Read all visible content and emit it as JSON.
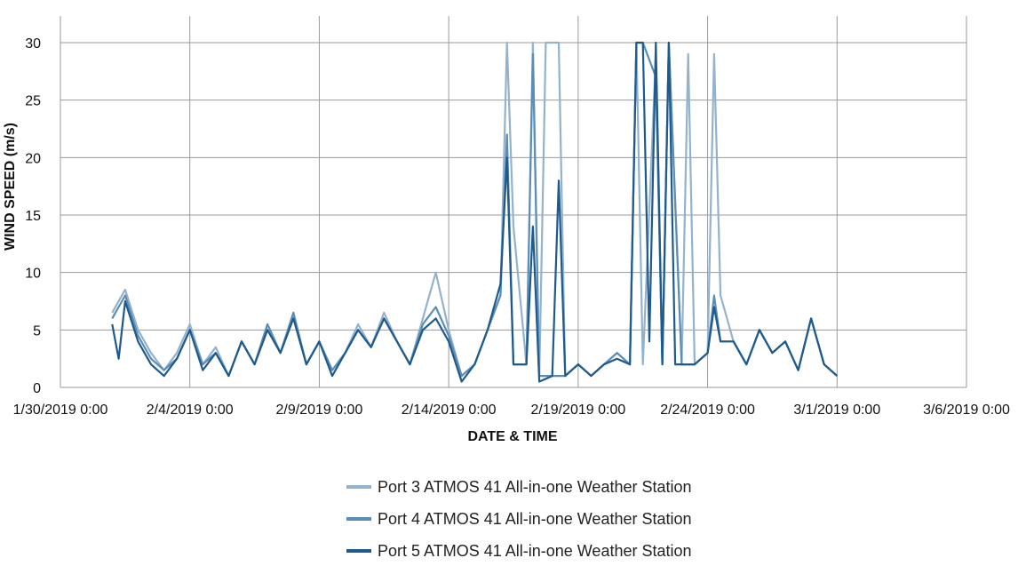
{
  "chart_data": {
    "type": "line",
    "title": "",
    "xlabel": "DATE & TIME",
    "ylabel": "WIND SPEED (m/s)",
    "x_start": "2019-01-30T00:00",
    "x_end": "2019-03-06T00:00",
    "ylim": [
      0,
      30
    ],
    "grid": true,
    "legend_position": "bottom",
    "x_tick_labels": [
      "1/30/2019 0:00",
      "2/4/2019 0:00",
      "2/9/2019 0:00",
      "2/14/2019 0:00",
      "2/19/2019 0:00",
      "2/24/2019 0:00",
      "3/1/2019 0:00",
      "3/6/2019 0:00"
    ],
    "y_ticks": [
      0,
      5,
      10,
      15,
      20,
      25,
      30
    ],
    "y_tick_labels": [
      "0",
      "5",
      "10",
      "15",
      "20",
      "25",
      "30"
    ],
    "series": [
      {
        "name": "Port 3 ATMOS 41 All-in-one Weather Station",
        "color": "#93B2CC",
        "points": [
          [
            "2019-02-01T00:00",
            6.5
          ],
          [
            "2019-02-01T12:00",
            8.5
          ],
          [
            "2019-02-02T00:00",
            5
          ],
          [
            "2019-02-02T12:00",
            3
          ],
          [
            "2019-02-03T00:00",
            1.5
          ],
          [
            "2019-02-03T12:00",
            3
          ],
          [
            "2019-02-04T00:00",
            5.5
          ],
          [
            "2019-02-04T12:00",
            2
          ],
          [
            "2019-02-05T00:00",
            3.5
          ],
          [
            "2019-02-05T12:00",
            1
          ],
          [
            "2019-02-06T00:00",
            4
          ],
          [
            "2019-02-06T12:00",
            2
          ],
          [
            "2019-02-07T00:00",
            5.5
          ],
          [
            "2019-02-07T12:00",
            3
          ],
          [
            "2019-02-08T00:00",
            6.5
          ],
          [
            "2019-02-08T12:00",
            2
          ],
          [
            "2019-02-09T00:00",
            4
          ],
          [
            "2019-02-09T12:00",
            1.5
          ],
          [
            "2019-02-10T00:00",
            3
          ],
          [
            "2019-02-10T12:00",
            5.5
          ],
          [
            "2019-02-11T00:00",
            3.5
          ],
          [
            "2019-02-11T12:00",
            6.5
          ],
          [
            "2019-02-12T00:00",
            4
          ],
          [
            "2019-02-12T12:00",
            2
          ],
          [
            "2019-02-13T00:00",
            6
          ],
          [
            "2019-02-13T12:00",
            10
          ],
          [
            "2019-02-14T00:00",
            5
          ],
          [
            "2019-02-14T12:00",
            1
          ],
          [
            "2019-02-15T00:00",
            2
          ],
          [
            "2019-02-15T12:00",
            5
          ],
          [
            "2019-02-16T00:00",
            8
          ],
          [
            "2019-02-16T06:00",
            30
          ],
          [
            "2019-02-16T12:00",
            14
          ],
          [
            "2019-02-17T00:00",
            2
          ],
          [
            "2019-02-17T06:00",
            30
          ],
          [
            "2019-02-17T12:00",
            1
          ],
          [
            "2019-02-17T18:00",
            30
          ],
          [
            "2019-02-18T00:00",
            30
          ],
          [
            "2019-02-18T06:00",
            30
          ],
          [
            "2019-02-18T12:00",
            1
          ],
          [
            "2019-02-19T00:00",
            2
          ],
          [
            "2019-02-19T12:00",
            1
          ],
          [
            "2019-02-20T00:00",
            2
          ],
          [
            "2019-02-20T12:00",
            3
          ],
          [
            "2019-02-21T00:00",
            2
          ],
          [
            "2019-02-21T06:00",
            30
          ],
          [
            "2019-02-21T12:00",
            2
          ],
          [
            "2019-02-22T00:00",
            29
          ],
          [
            "2019-02-22T06:00",
            2
          ],
          [
            "2019-02-22T12:00",
            30
          ],
          [
            "2019-02-23T00:00",
            2
          ],
          [
            "2019-02-23T06:00",
            29
          ],
          [
            "2019-02-23T12:00",
            2
          ],
          [
            "2019-02-24T00:00",
            3
          ],
          [
            "2019-02-24T06:00",
            29
          ],
          [
            "2019-02-24T12:00",
            8
          ],
          [
            "2019-02-25T00:00",
            4
          ],
          [
            "2019-02-25T12:00",
            2
          ],
          [
            "2019-02-26T00:00",
            5
          ],
          [
            "2019-02-26T12:00",
            3
          ],
          [
            "2019-02-27T00:00",
            4
          ],
          [
            "2019-02-27T12:00",
            1.5
          ],
          [
            "2019-02-28T00:00",
            6
          ],
          [
            "2019-02-28T12:00",
            2
          ],
          [
            "2019-03-01T00:00",
            1
          ]
        ]
      },
      {
        "name": "Port 4 ATMOS 41 All-in-one Weather Station",
        "color": "#5C8DB5",
        "points": [
          [
            "2019-02-01T00:00",
            6
          ],
          [
            "2019-02-01T12:00",
            8
          ],
          [
            "2019-02-02T00:00",
            4.5
          ],
          [
            "2019-02-02T12:00",
            2.5
          ],
          [
            "2019-02-03T00:00",
            1.5
          ],
          [
            "2019-02-03T12:00",
            2.5
          ],
          [
            "2019-02-04T00:00",
            5
          ],
          [
            "2019-02-04T12:00",
            2
          ],
          [
            "2019-02-05T00:00",
            3
          ],
          [
            "2019-02-05T12:00",
            1
          ],
          [
            "2019-02-06T00:00",
            4
          ],
          [
            "2019-02-06T12:00",
            2
          ],
          [
            "2019-02-07T00:00",
            5.5
          ],
          [
            "2019-02-07T12:00",
            3
          ],
          [
            "2019-02-08T00:00",
            6.5
          ],
          [
            "2019-02-08T12:00",
            2
          ],
          [
            "2019-02-09T00:00",
            4
          ],
          [
            "2019-02-09T12:00",
            1.5
          ],
          [
            "2019-02-10T00:00",
            3
          ],
          [
            "2019-02-10T12:00",
            5
          ],
          [
            "2019-02-11T00:00",
            3.5
          ],
          [
            "2019-02-11T12:00",
            6
          ],
          [
            "2019-02-12T00:00",
            4
          ],
          [
            "2019-02-12T12:00",
            2
          ],
          [
            "2019-02-13T00:00",
            5.5
          ],
          [
            "2019-02-13T12:00",
            7
          ],
          [
            "2019-02-14T00:00",
            4.5
          ],
          [
            "2019-02-14T12:00",
            1
          ],
          [
            "2019-02-15T00:00",
            2
          ],
          [
            "2019-02-15T12:00",
            5
          ],
          [
            "2019-02-16T00:00",
            8
          ],
          [
            "2019-02-16T06:00",
            22
          ],
          [
            "2019-02-16T12:00",
            2
          ],
          [
            "2019-02-17T00:00",
            2
          ],
          [
            "2019-02-17T06:00",
            29
          ],
          [
            "2019-02-17T12:00",
            1
          ],
          [
            "2019-02-18T00:00",
            1
          ],
          [
            "2019-02-18T12:00",
            1
          ],
          [
            "2019-02-19T00:00",
            2
          ],
          [
            "2019-02-19T12:00",
            1
          ],
          [
            "2019-02-20T00:00",
            2
          ],
          [
            "2019-02-20T12:00",
            3
          ],
          [
            "2019-02-21T00:00",
            2
          ],
          [
            "2019-02-21T06:00",
            30
          ],
          [
            "2019-02-21T12:00",
            30
          ],
          [
            "2019-02-22T00:00",
            27
          ],
          [
            "2019-02-22T06:00",
            2
          ],
          [
            "2019-02-22T12:00",
            30
          ],
          [
            "2019-02-23T00:00",
            2
          ],
          [
            "2019-02-23T12:00",
            2
          ],
          [
            "2019-02-24T00:00",
            3
          ],
          [
            "2019-02-24T06:00",
            8
          ],
          [
            "2019-02-24T12:00",
            4
          ],
          [
            "2019-02-25T00:00",
            4
          ],
          [
            "2019-02-25T12:00",
            2
          ],
          [
            "2019-02-26T00:00",
            5
          ],
          [
            "2019-02-26T12:00",
            3
          ],
          [
            "2019-02-27T00:00",
            4
          ],
          [
            "2019-02-27T12:00",
            1.5
          ],
          [
            "2019-02-28T00:00",
            6
          ],
          [
            "2019-02-28T12:00",
            2
          ],
          [
            "2019-03-01T00:00",
            1
          ]
        ]
      },
      {
        "name": "Port 5 ATMOS 41 All-in-one Weather Station",
        "color": "#1F5A8C",
        "points": [
          [
            "2019-02-01T00:00",
            5.5
          ],
          [
            "2019-02-01T06:00",
            2.5
          ],
          [
            "2019-02-01T12:00",
            7.5
          ],
          [
            "2019-02-02T00:00",
            4
          ],
          [
            "2019-02-02T12:00",
            2
          ],
          [
            "2019-02-03T00:00",
            1
          ],
          [
            "2019-02-03T12:00",
            2.5
          ],
          [
            "2019-02-04T00:00",
            5
          ],
          [
            "2019-02-04T12:00",
            1.5
          ],
          [
            "2019-02-05T00:00",
            3
          ],
          [
            "2019-02-05T12:00",
            1
          ],
          [
            "2019-02-06T00:00",
            4
          ],
          [
            "2019-02-06T12:00",
            2
          ],
          [
            "2019-02-07T00:00",
            5
          ],
          [
            "2019-02-07T12:00",
            3
          ],
          [
            "2019-02-08T00:00",
            6
          ],
          [
            "2019-02-08T12:00",
            2
          ],
          [
            "2019-02-09T00:00",
            4
          ],
          [
            "2019-02-09T12:00",
            1
          ],
          [
            "2019-02-10T00:00",
            3
          ],
          [
            "2019-02-10T12:00",
            5
          ],
          [
            "2019-02-11T00:00",
            3.5
          ],
          [
            "2019-02-11T12:00",
            6
          ],
          [
            "2019-02-12T00:00",
            4
          ],
          [
            "2019-02-12T12:00",
            2
          ],
          [
            "2019-02-13T00:00",
            5
          ],
          [
            "2019-02-13T12:00",
            6
          ],
          [
            "2019-02-14T00:00",
            4
          ],
          [
            "2019-02-14T12:00",
            0.5
          ],
          [
            "2019-02-15T00:00",
            2
          ],
          [
            "2019-02-15T12:00",
            5
          ],
          [
            "2019-02-16T00:00",
            9
          ],
          [
            "2019-02-16T06:00",
            20
          ],
          [
            "2019-02-16T12:00",
            2
          ],
          [
            "2019-02-17T00:00",
            2
          ],
          [
            "2019-02-17T06:00",
            14
          ],
          [
            "2019-02-17T12:00",
            0.5
          ],
          [
            "2019-02-18T00:00",
            1
          ],
          [
            "2019-02-18T06:00",
            18
          ],
          [
            "2019-02-18T12:00",
            1
          ],
          [
            "2019-02-19T00:00",
            2
          ],
          [
            "2019-02-19T12:00",
            1
          ],
          [
            "2019-02-20T00:00",
            2
          ],
          [
            "2019-02-20T12:00",
            2.5
          ],
          [
            "2019-02-21T00:00",
            2
          ],
          [
            "2019-02-21T06:00",
            30
          ],
          [
            "2019-02-21T12:00",
            30
          ],
          [
            "2019-02-21T18:00",
            4
          ],
          [
            "2019-02-22T00:00",
            30
          ],
          [
            "2019-02-22T06:00",
            2
          ],
          [
            "2019-02-22T12:00",
            30
          ],
          [
            "2019-02-22T18:00",
            2
          ],
          [
            "2019-02-23T00:00",
            2
          ],
          [
            "2019-02-23T12:00",
            2
          ],
          [
            "2019-02-24T00:00",
            3
          ],
          [
            "2019-02-24T06:00",
            7
          ],
          [
            "2019-02-24T12:00",
            4
          ],
          [
            "2019-02-25T00:00",
            4
          ],
          [
            "2019-02-25T12:00",
            2
          ],
          [
            "2019-02-26T00:00",
            5
          ],
          [
            "2019-02-26T12:00",
            3
          ],
          [
            "2019-02-27T00:00",
            4
          ],
          [
            "2019-02-27T12:00",
            1.5
          ],
          [
            "2019-02-28T00:00",
            6
          ],
          [
            "2019-02-28T12:00",
            2
          ],
          [
            "2019-03-01T00:00",
            1
          ]
        ]
      }
    ]
  }
}
